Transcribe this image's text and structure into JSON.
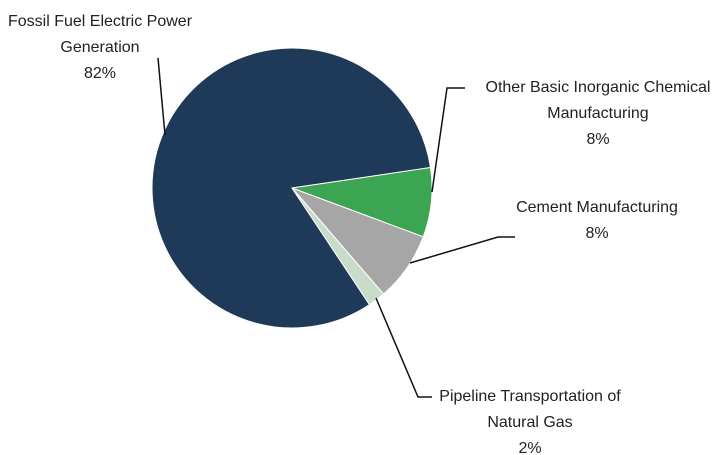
{
  "chart_data": {
    "type": "pie",
    "categories": [
      "Fossil Fuel Electric Power Generation",
      "Other Basic Inorganic Chemical Manufacturing",
      "Cement Manufacturing",
      "Pipeline Transportation of Natural Gas"
    ],
    "values": [
      82,
      8,
      8,
      2
    ],
    "value_labels": [
      "82%",
      "8%",
      "8%",
      "2%"
    ],
    "colors": [
      "#1f3a58",
      "#3ba552",
      "#a6a6a6",
      "#c9dccb"
    ]
  }
}
